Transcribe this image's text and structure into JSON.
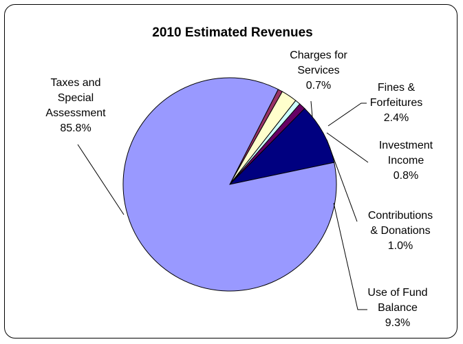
{
  "chart_data": {
    "type": "pie",
    "title": "2010 Estimated Revenues",
    "slices": [
      {
        "label": "Charges for Services",
        "lines": [
          "Charges for",
          "Services"
        ],
        "value": 0.7,
        "pct_label": "0.7%",
        "color": "#993366"
      },
      {
        "label": "Fines & Forfeitures",
        "lines": [
          "Fines &",
          "Forfeitures"
        ],
        "value": 2.4,
        "pct_label": "2.4%",
        "color": "#ffffcc"
      },
      {
        "label": "Investment Income",
        "lines": [
          "Investment",
          "Income"
        ],
        "value": 0.8,
        "pct_label": "0.8%",
        "color": "#ccffff"
      },
      {
        "label": "Contributions & Donations",
        "lines": [
          "Contributions",
          "& Donations"
        ],
        "value": 1.0,
        "pct_label": "1.0%",
        "color": "#660066"
      },
      {
        "label": "Use of Fund Balance",
        "lines": [
          "Use of Fund",
          "Balance"
        ],
        "value": 9.3,
        "pct_label": "9.3%",
        "color": "#000080"
      },
      {
        "label": "Taxes and Special Assessment",
        "lines": [
          "Taxes and",
          "Special",
          "Assessment"
        ],
        "value": 85.8,
        "pct_label": "85.8%",
        "color": "#9999ff"
      }
    ]
  }
}
